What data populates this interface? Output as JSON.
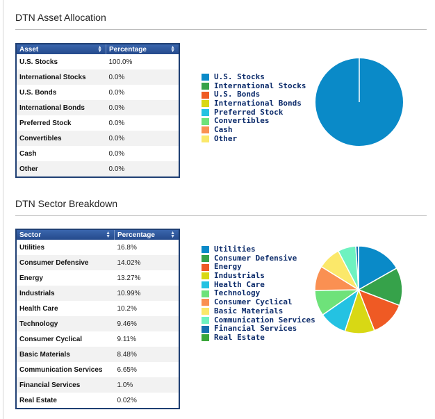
{
  "asset": {
    "title": "DTN Asset Allocation",
    "columns": [
      "Asset",
      "Percentage"
    ],
    "rows": [
      {
        "name": "U.S. Stocks",
        "pct": "100.0%"
      },
      {
        "name": "International Stocks",
        "pct": "0.0%"
      },
      {
        "name": "U.S. Bonds",
        "pct": "0.0%"
      },
      {
        "name": "International Bonds",
        "pct": "0.0%"
      },
      {
        "name": "Preferred Stock",
        "pct": "0.0%"
      },
      {
        "name": "Convertibles",
        "pct": "0.0%"
      },
      {
        "name": "Cash",
        "pct": "0.0%"
      },
      {
        "name": "Other",
        "pct": "0.0%"
      }
    ],
    "legend": [
      {
        "label": "U.S. Stocks",
        "color": "#0a8ac8"
      },
      {
        "label": "International Stocks",
        "color": "#36a24a"
      },
      {
        "label": "U.S. Bonds",
        "color": "#ef5a24"
      },
      {
        "label": "International Bonds",
        "color": "#d8d814"
      },
      {
        "label": "Preferred Stock",
        "color": "#24c2e2"
      },
      {
        "label": "Convertibles",
        "color": "#6ee27a"
      },
      {
        "label": "Cash",
        "color": "#fa9052"
      },
      {
        "label": "Other",
        "color": "#fbe86a"
      }
    ]
  },
  "sector": {
    "title": "DTN Sector Breakdown",
    "columns": [
      "Sector",
      "Percentage"
    ],
    "rows": [
      {
        "name": "Utilities",
        "pct": "16.8%"
      },
      {
        "name": "Consumer Defensive",
        "pct": "14.02%"
      },
      {
        "name": "Energy",
        "pct": "13.27%"
      },
      {
        "name": "Industrials",
        "pct": "10.99%"
      },
      {
        "name": "Health Care",
        "pct": "10.2%"
      },
      {
        "name": "Technology",
        "pct": "9.46%"
      },
      {
        "name": "Consumer Cyclical",
        "pct": "9.11%"
      },
      {
        "name": "Basic Materials",
        "pct": "8.48%"
      },
      {
        "name": "Communication Services",
        "pct": "6.65%"
      },
      {
        "name": "Financial Services",
        "pct": "1.0%"
      },
      {
        "name": "Real Estate",
        "pct": "0.02%"
      }
    ],
    "legend": [
      {
        "label": "Utilities",
        "color": "#0a8ac8"
      },
      {
        "label": "Consumer Defensive",
        "color": "#36a24a"
      },
      {
        "label": "Energy",
        "color": "#ef5a24"
      },
      {
        "label": "Industrials",
        "color": "#d8d814"
      },
      {
        "label": "Health Care",
        "color": "#24c2e2"
      },
      {
        "label": "Technology",
        "color": "#6ee27a"
      },
      {
        "label": "Consumer Cyclical",
        "color": "#fa9052"
      },
      {
        "label": "Basic Materials",
        "color": "#fbe86a"
      },
      {
        "label": "Communication Services",
        "color": "#6ef2c0"
      },
      {
        "label": "Financial Services",
        "color": "#1670b0"
      },
      {
        "label": "Real Estate",
        "color": "#3aa63a"
      }
    ]
  },
  "chart_data": [
    {
      "type": "pie",
      "categories": [
        "U.S. Stocks",
        "International Stocks",
        "U.S. Bonds",
        "International Bonds",
        "Preferred Stock",
        "Convertibles",
        "Cash",
        "Other"
      ],
      "values": [
        100.0,
        0.0,
        0.0,
        0.0,
        0.0,
        0.0,
        0.0,
        0.0
      ],
      "colors": [
        "#0a8ac8",
        "#36a24a",
        "#ef5a24",
        "#d8d814",
        "#24c2e2",
        "#6ee27a",
        "#fa9052",
        "#fbe86a"
      ],
      "legend": "left"
    },
    {
      "type": "pie",
      "categories": [
        "Utilities",
        "Consumer Defensive",
        "Energy",
        "Industrials",
        "Health Care",
        "Technology",
        "Consumer Cyclical",
        "Basic Materials",
        "Communication Services",
        "Financial Services",
        "Real Estate"
      ],
      "values": [
        16.8,
        14.02,
        13.27,
        10.99,
        10.2,
        9.46,
        9.11,
        8.48,
        6.65,
        1.0,
        0.02
      ],
      "colors": [
        "#0a8ac8",
        "#36a24a",
        "#ef5a24",
        "#d8d814",
        "#24c2e2",
        "#6ee27a",
        "#fa9052",
        "#fbe86a",
        "#6ef2c0",
        "#1670b0",
        "#3aa63a"
      ],
      "legend": "left"
    }
  ]
}
